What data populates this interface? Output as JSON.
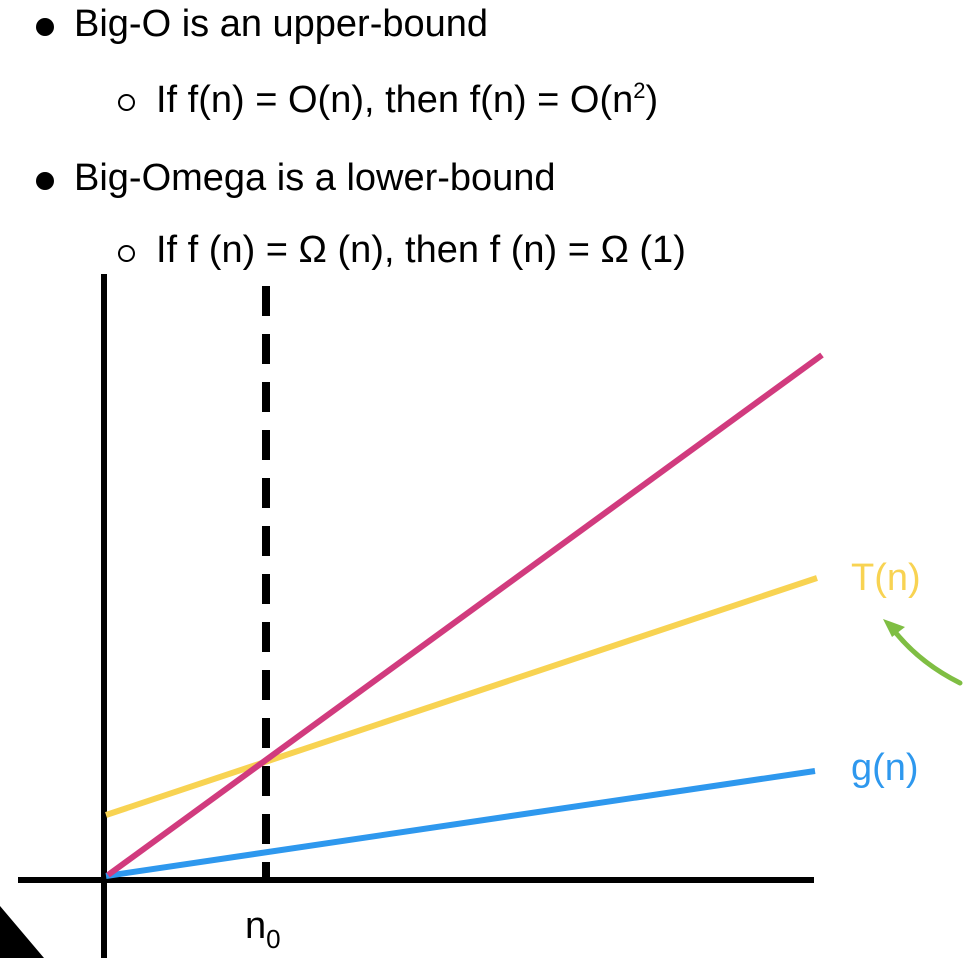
{
  "bullets": [
    {
      "text": "Big-O is an upper-bound",
      "sub": {
        "prefix": "If f(n) = O(n), then f(n) = O(n",
        "sup": "2",
        "suffix": ")"
      }
    },
    {
      "text": "Big-Omega is a lower-bound",
      "sub": {
        "text": "If f (n) = Ω (n), then f (n) = Ω (1)"
      }
    }
  ],
  "diagram": {
    "labels": {
      "t_n": "T(n)",
      "g_n": "g(n)",
      "n0_base": "n",
      "n0_sub": "0"
    },
    "colors": {
      "axis": "#000000",
      "upper_line": "#d13b7e",
      "t_line": "#f8d352",
      "g_line": "#2e98ee",
      "arrow": "#7fbe43"
    }
  }
}
